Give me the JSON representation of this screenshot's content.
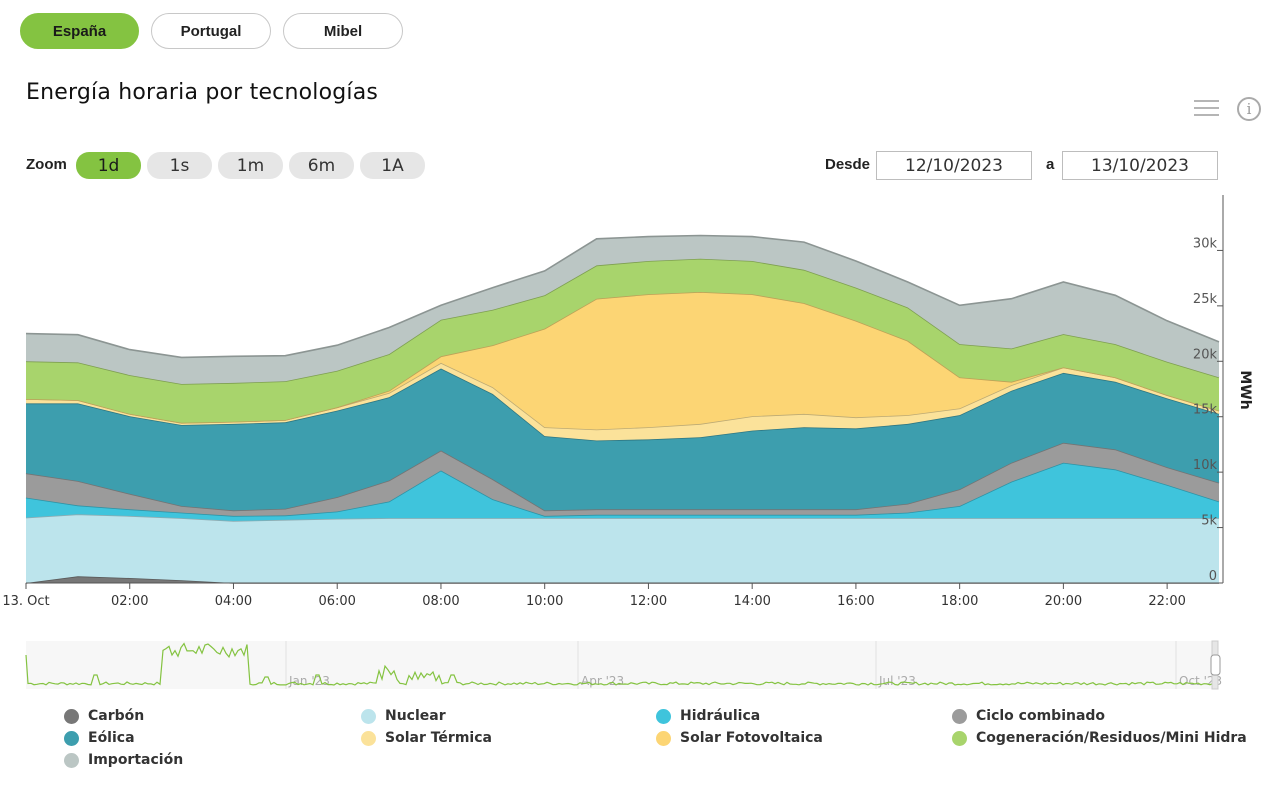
{
  "region_tabs": [
    {
      "label": "España",
      "active": true
    },
    {
      "label": "Portugal",
      "active": false
    },
    {
      "label": "Mibel",
      "active": false
    }
  ],
  "title": "Energía horaria por tecnologías",
  "zoom": {
    "label": "Zoom",
    "buttons": [
      {
        "label": "1d",
        "active": true
      },
      {
        "label": "1s",
        "active": false
      },
      {
        "label": "1m",
        "active": false
      },
      {
        "label": "6m",
        "active": false
      },
      {
        "label": "1A",
        "active": false
      }
    ]
  },
  "date_range": {
    "from_label": "Desde",
    "from_value": "12/10/2023",
    "to_label": "a",
    "to_value": "13/10/2023"
  },
  "icons": {
    "menu": "hamburger-menu-icon",
    "info": "info-icon"
  },
  "chart_data": {
    "type": "area",
    "stacked": true,
    "ylabel": "MWh",
    "ylim": [
      0,
      35000
    ],
    "yticks": [
      0,
      5000,
      10000,
      15000,
      20000,
      25000,
      30000
    ],
    "ytick_labels": [
      "0",
      "5k",
      "10k",
      "15k",
      "20k",
      "25k",
      "30k"
    ],
    "x_hours": [
      0,
      1,
      2,
      3,
      4,
      5,
      6,
      7,
      8,
      9,
      10,
      11,
      12,
      13,
      14,
      15,
      16,
      17,
      18,
      19,
      20,
      21,
      22,
      23
    ],
    "xticks": [
      0,
      2,
      4,
      6,
      8,
      10,
      12,
      14,
      16,
      18,
      20,
      22
    ],
    "xtick_labels": [
      "13. Oct",
      "02:00",
      "04:00",
      "06:00",
      "08:00",
      "10:00",
      "12:00",
      "14:00",
      "16:00",
      "18:00",
      "20:00",
      "22:00"
    ],
    "series": [
      {
        "name": "Carbón",
        "color": "#777777",
        "values": [
          0,
          600,
          450,
          250,
          0,
          0,
          0,
          0,
          0,
          0,
          0,
          0,
          0,
          0,
          0,
          0,
          0,
          0,
          0,
          0,
          0,
          0,
          0,
          0
        ]
      },
      {
        "name": "Nuclear",
        "color": "#bce4ec",
        "values": [
          5900,
          5600,
          5600,
          5600,
          5600,
          5700,
          5800,
          5850,
          5850,
          5850,
          5850,
          5850,
          5850,
          5850,
          5850,
          5850,
          5850,
          5850,
          5850,
          5850,
          5850,
          5850,
          5850,
          5850
        ]
      },
      {
        "name": "Hidráulica",
        "color": "#3fc4dc",
        "values": [
          1800,
          800,
          600,
          500,
          450,
          400,
          650,
          1500,
          4300,
          1700,
          200,
          300,
          300,
          300,
          300,
          300,
          300,
          500,
          1100,
          3300,
          5000,
          4400,
          3000,
          1500
        ]
      },
      {
        "name": "Ciclo combinado",
        "color": "#9b9b9b",
        "values": [
          2200,
          2200,
          1400,
          600,
          500,
          600,
          1300,
          1900,
          1800,
          1800,
          500,
          500,
          500,
          500,
          500,
          500,
          500,
          800,
          1500,
          1700,
          1800,
          1800,
          1600,
          1700
        ]
      },
      {
        "name": "Eólica",
        "color": "#3d9eae",
        "values": [
          6300,
          7000,
          7000,
          7300,
          7800,
          7800,
          7800,
          7500,
          7400,
          7700,
          6700,
          6200,
          6300,
          6500,
          7100,
          7400,
          7300,
          7200,
          6700,
          6500,
          6300,
          6100,
          6200,
          6200
        ]
      },
      {
        "name": "Solar Térmica",
        "color": "#fbe29a",
        "values": [
          400,
          300,
          200,
          200,
          200,
          200,
          300,
          400,
          500,
          600,
          800,
          1000,
          1100,
          1200,
          1300,
          1200,
          1000,
          800,
          600,
          500,
          500,
          400,
          300,
          300
        ]
      },
      {
        "name": "Solar Fotovoltaica",
        "color": "#fcd574",
        "values": [
          0,
          0,
          0,
          0,
          0,
          0,
          0,
          200,
          600,
          3800,
          8900,
          11800,
          12000,
          11900,
          11000,
          10000,
          8700,
          6700,
          2800,
          300,
          0,
          0,
          0,
          0
        ]
      },
      {
        "name": "Cogeneración/Residuos/Mini Hidra",
        "color": "#a8d46c",
        "values": [
          3400,
          3400,
          3500,
          3500,
          3500,
          3500,
          3300,
          3300,
          3300,
          3200,
          3000,
          3000,
          3000,
          3000,
          3000,
          3000,
          3000,
          3000,
          3000,
          3000,
          3000,
          3000,
          3000,
          3000
        ]
      },
      {
        "name": "Importación",
        "color": "#bbc6c4",
        "values": [
          2500,
          2500,
          2300,
          2400,
          2400,
          2300,
          2300,
          2400,
          1300,
          2000,
          2200,
          2400,
          2200,
          2100,
          2200,
          2500,
          2400,
          2300,
          3500,
          4500,
          4700,
          4400,
          3700,
          3200
        ]
      }
    ],
    "navigator": {
      "labels": [
        "Jan '23",
        "Apr '23",
        "Jul '23",
        "Oct '23"
      ],
      "color": "#84c341"
    }
  }
}
